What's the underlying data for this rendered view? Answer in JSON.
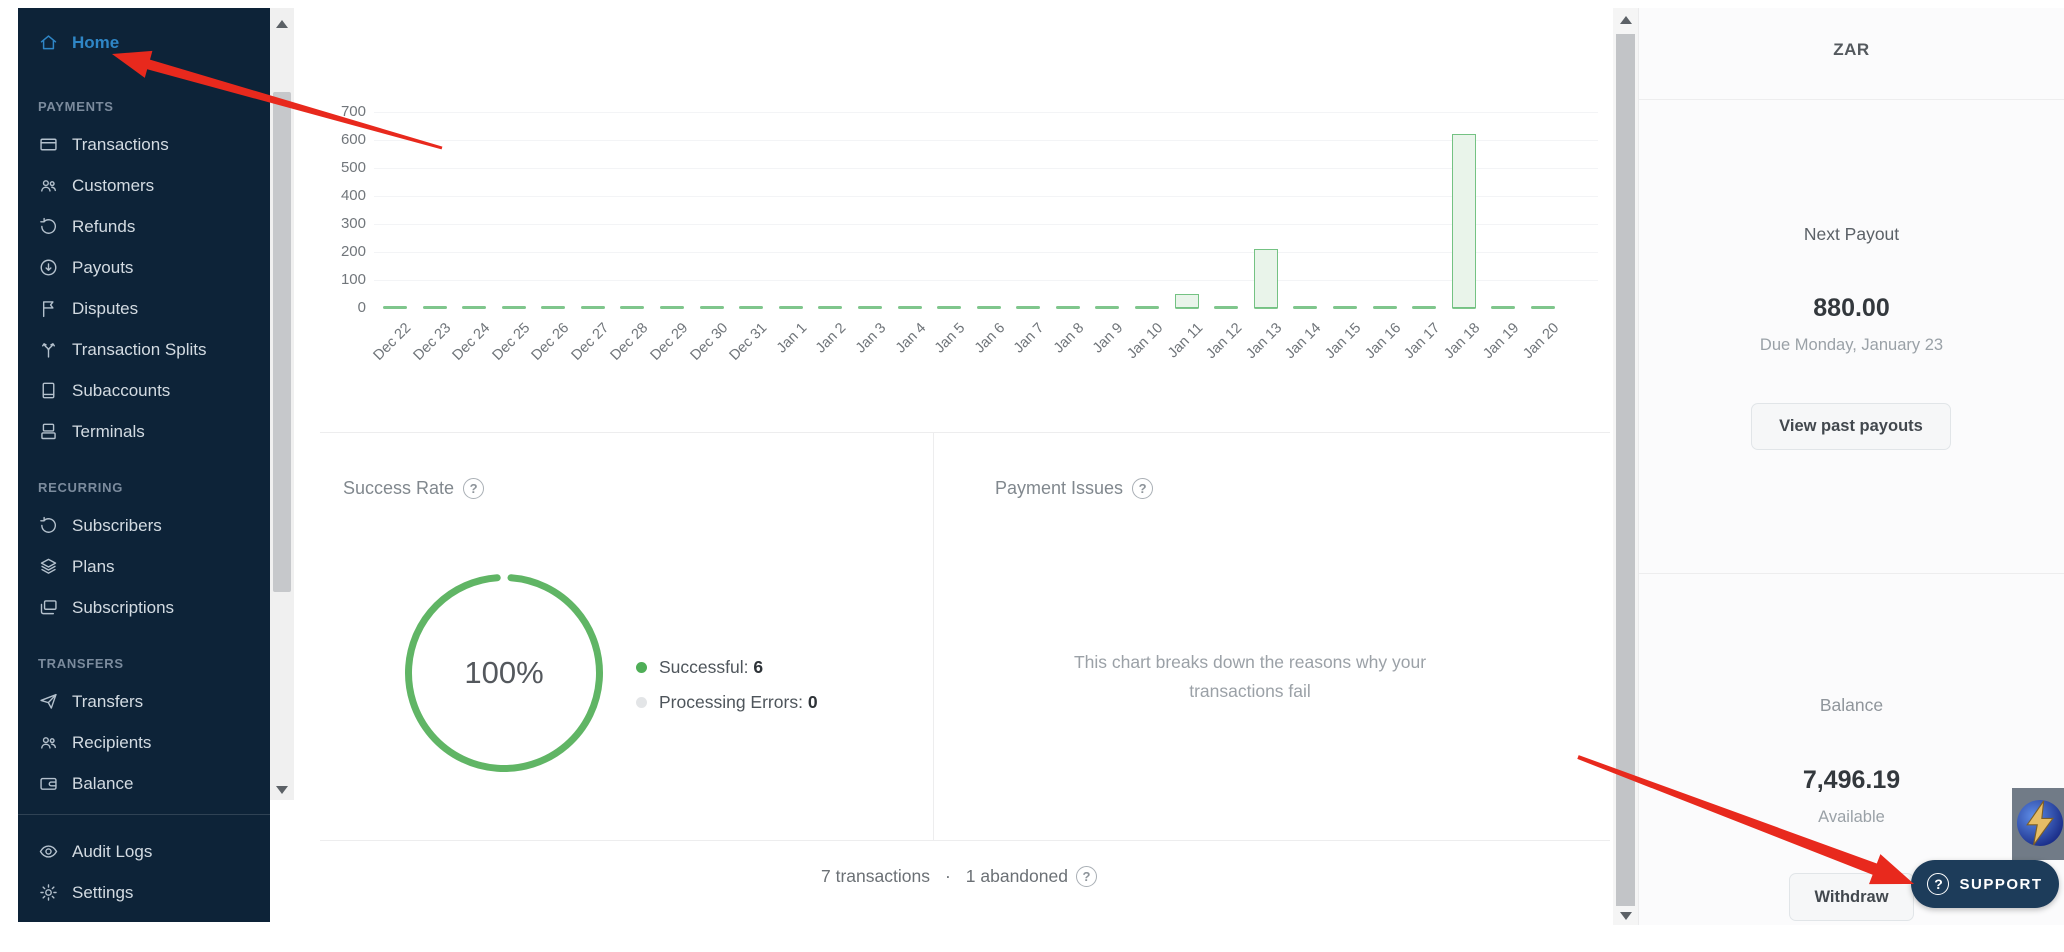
{
  "sidebar": {
    "home_label": "Home",
    "sections": [
      {
        "title": "PAYMENTS",
        "items": [
          "Transactions",
          "Customers",
          "Refunds",
          "Payouts",
          "Disputes",
          "Transaction Splits",
          "Subaccounts",
          "Terminals"
        ]
      },
      {
        "title": "RECURRING",
        "items": [
          "Subscribers",
          "Plans",
          "Subscriptions"
        ]
      },
      {
        "title": "TRANSFERS",
        "items": [
          "Transfers",
          "Recipients",
          "Balance"
        ]
      }
    ],
    "bottom_items": [
      "Audit Logs",
      "Settings"
    ]
  },
  "chart_data": {
    "type": "bar",
    "title": "",
    "categories": [
      "Dec 22",
      "Dec 23",
      "Dec 24",
      "Dec 25",
      "Dec 26",
      "Dec 27",
      "Dec 28",
      "Dec 29",
      "Dec 30",
      "Dec 31",
      "Jan 1",
      "Jan 2",
      "Jan 3",
      "Jan 4",
      "Jan 5",
      "Jan 6",
      "Jan 7",
      "Jan 8",
      "Jan 9",
      "Jan 10",
      "Jan 11",
      "Jan 12",
      "Jan 13",
      "Jan 14",
      "Jan 15",
      "Jan 16",
      "Jan 17",
      "Jan 18",
      "Jan 19",
      "Jan 20"
    ],
    "values": [
      0,
      0,
      0,
      0,
      0,
      0,
      0,
      0,
      0,
      0,
      0,
      0,
      0,
      0,
      0,
      0,
      0,
      0,
      0,
      0,
      50,
      0,
      210,
      0,
      0,
      0,
      0,
      620,
      0,
      0
    ],
    "yticks": [
      0,
      100,
      200,
      300,
      400,
      500,
      600,
      700
    ],
    "ylim": [
      0,
      700
    ],
    "xlabel": "",
    "ylabel": "",
    "grid": true,
    "legend_position": "none",
    "bar_fill": "#e9f4ea",
    "bar_border": "#74c283",
    "zero_dash_color": "#7fc68c"
  },
  "success_rate": {
    "title": "Success Rate",
    "percent": "100%",
    "ring_color": "#60b565",
    "legend": [
      {
        "label": "Successful:",
        "value": "6",
        "dot_color": "#4fae57"
      },
      {
        "label": "Processing Errors:",
        "value": "0",
        "dot_color": "#e3e5e7"
      }
    ]
  },
  "payment_issues": {
    "title": "Payment Issues",
    "empty_line1": "This chart breaks down the reasons why your",
    "empty_line2": "transactions fail"
  },
  "footer": {
    "transactions": "7 transactions",
    "separator": "·",
    "abandoned": "1 abandoned"
  },
  "panel": {
    "currency": "ZAR",
    "next_payout_label": "Next Payout",
    "next_payout_amount": "880.00",
    "next_payout_due": "Due Monday, January 23",
    "view_past_payouts": "View past payouts",
    "balance_label": "Balance",
    "balance_amount": "7,496.19",
    "balance_availability": "Available",
    "withdraw": "Withdraw"
  },
  "support_label": "SUPPORT",
  "icons": {
    "help": "?"
  },
  "annotations": {
    "arrow_color": "#e8291d",
    "arrows": [
      {
        "points_to": "Home menu item"
      },
      {
        "points_to": "Support button"
      }
    ]
  }
}
